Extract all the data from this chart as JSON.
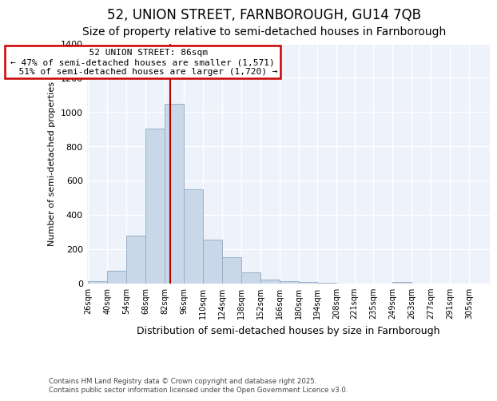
{
  "title": "52, UNION STREET, FARNBOROUGH, GU14 7QB",
  "subtitle": "Size of property relative to semi-detached houses in Farnborough",
  "xlabel": "Distribution of semi-detached houses by size in Farnborough",
  "ylabel": "Number of semi-detached properties",
  "bin_labels": [
    "26sqm",
    "40sqm",
    "54sqm",
    "68sqm",
    "82sqm",
    "96sqm",
    "110sqm",
    "124sqm",
    "138sqm",
    "152sqm",
    "166sqm",
    "180sqm",
    "194sqm",
    "208sqm",
    "221sqm",
    "235sqm",
    "249sqm",
    "263sqm",
    "277sqm",
    "291sqm",
    "305sqm"
  ],
  "bin_edges": [
    26,
    40,
    54,
    68,
    82,
    96,
    110,
    124,
    138,
    152,
    166,
    180,
    194,
    208,
    221,
    235,
    249,
    263,
    277,
    291,
    305
  ],
  "bar_values": [
    14,
    72,
    280,
    905,
    1046,
    548,
    255,
    150,
    65,
    20,
    12,
    5,
    2,
    0,
    0,
    0,
    8,
    0,
    0,
    0
  ],
  "bar_color": "#c8d8e8",
  "bar_edge_color": "#9ab0c8",
  "property_size": 86,
  "property_label": "52 UNION STREET: 86sqm",
  "pct_smaller": 47,
  "count_smaller": 1571,
  "pct_larger": 51,
  "count_larger": 1720,
  "vline_color": "#bb0000",
  "annotation_box_color": "#cc0000",
  "ylim": [
    0,
    1400
  ],
  "yticks": [
    0,
    200,
    400,
    600,
    800,
    1000,
    1200,
    1400
  ],
  "background_color": "#eef2fb",
  "footer": "Contains HM Land Registry data © Crown copyright and database right 2025.\nContains public sector information licensed under the Open Government Licence v3.0.",
  "title_fontsize": 12,
  "subtitle_fontsize": 10,
  "ylabel_fontsize": 8,
  "xlabel_fontsize": 9,
  "annot_fontsize": 8
}
